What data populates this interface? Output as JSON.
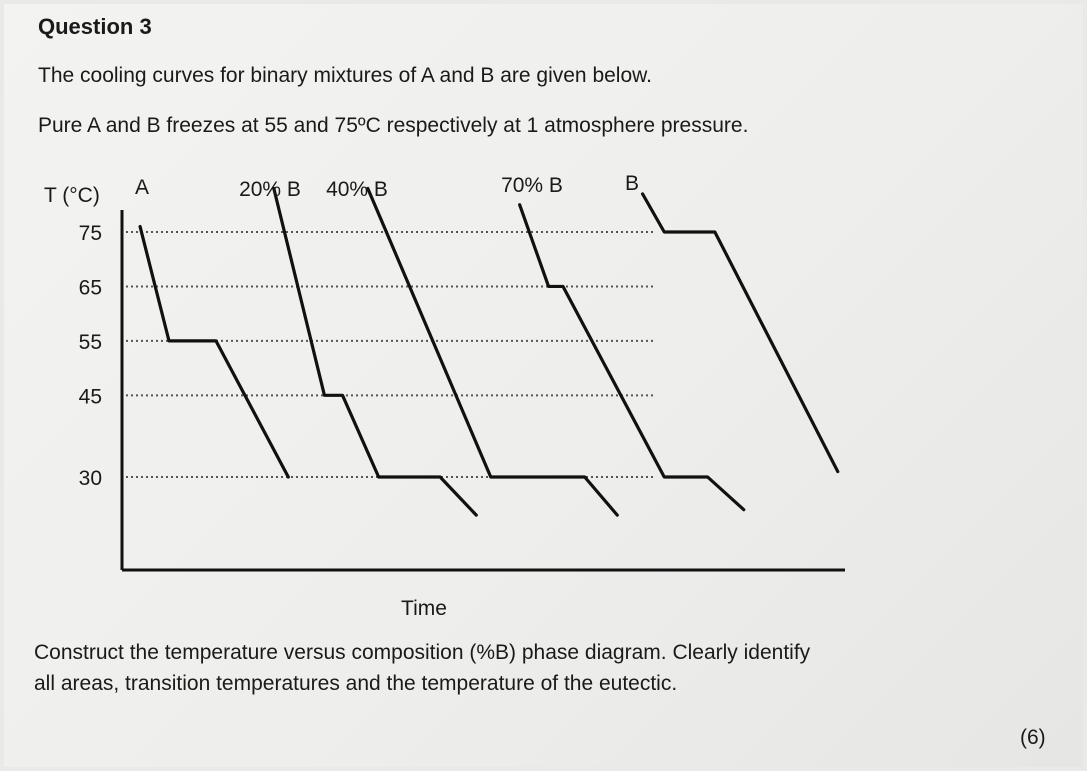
{
  "question": {
    "title": "Question 3",
    "line1": "The cooling curves for binary mixtures of A and B are given below.",
    "line2": "Pure A and B freezes at 55 and 75ºC respectively at 1 atmosphere pressure.",
    "prompt_line1": "Construct the temperature versus composition (%B) phase diagram. Clearly identify",
    "prompt_line2": "all areas, transition temperatures and the temperature of the eutectic.",
    "marks": "(6)"
  },
  "chart_data": {
    "type": "line",
    "title": "",
    "xlabel": "Time",
    "ylabel": "T (°C)",
    "y_ticks": [
      75,
      65,
      55,
      45,
      30
    ],
    "ylim": [
      15,
      82
    ],
    "x_units": "arbitrary time",
    "xlim": [
      0,
      100
    ],
    "reference_lines": [
      75,
      65,
      55,
      45,
      30
    ],
    "line_color": "#111111",
    "guide_color": "#555555",
    "series": [
      {
        "name": "A",
        "points": [
          [
            2.5,
            76
          ],
          [
            6.5,
            55
          ],
          [
            13,
            55
          ],
          [
            23,
            30
          ]
        ]
      },
      {
        "name": "20% B",
        "points": [
          [
            21,
            83
          ],
          [
            28,
            45
          ],
          [
            30.5,
            45
          ],
          [
            35.5,
            30
          ],
          [
            44,
            30
          ],
          [
            49,
            23
          ]
        ]
      },
      {
        "name": "40% B",
        "points": [
          [
            34,
            83
          ],
          [
            51,
            30
          ],
          [
            64,
            30
          ],
          [
            68.5,
            23
          ]
        ]
      },
      {
        "name": "70% B",
        "points": [
          [
            55,
            80
          ],
          [
            59,
            65
          ],
          [
            61,
            65
          ],
          [
            75,
            30
          ],
          [
            81,
            30
          ],
          [
            86,
            24
          ]
        ]
      },
      {
        "name": "B",
        "points": [
          [
            72,
            82
          ],
          [
            75,
            75
          ],
          [
            82,
            75
          ],
          [
            99,
            31
          ]
        ]
      }
    ]
  }
}
